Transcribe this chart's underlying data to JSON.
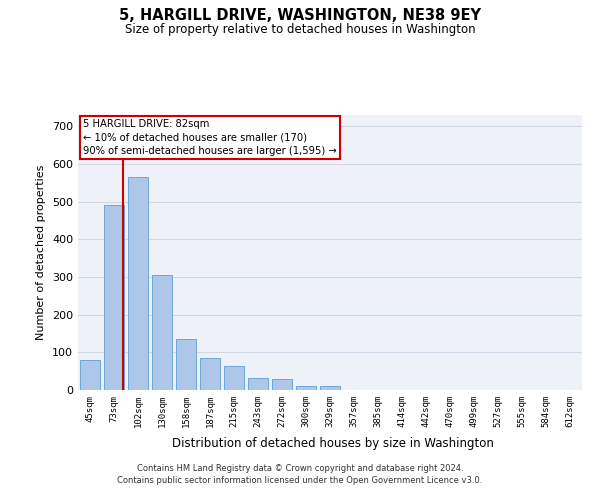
{
  "title": "5, HARGILL DRIVE, WASHINGTON, NE38 9EY",
  "subtitle": "Size of property relative to detached houses in Washington",
  "xlabel": "Distribution of detached houses by size in Washington",
  "ylabel": "Number of detached properties",
  "bar_values": [
    80,
    490,
    565,
    305,
    135,
    85,
    65,
    32,
    28,
    10,
    10,
    0,
    0,
    0,
    0,
    0,
    0,
    0,
    0,
    0,
    0
  ],
  "bar_labels": [
    "45sqm",
    "73sqm",
    "102sqm",
    "130sqm",
    "158sqm",
    "187sqm",
    "215sqm",
    "243sqm",
    "272sqm",
    "300sqm",
    "329sqm",
    "357sqm",
    "385sqm",
    "414sqm",
    "442sqm",
    "470sqm",
    "499sqm",
    "527sqm",
    "555sqm",
    "584sqm",
    "612sqm"
  ],
  "bar_color": "#aec6e8",
  "bar_edgecolor": "#5a9fd4",
  "vline_x": 1.37,
  "vline_color": "#cc0000",
  "ylim": [
    0,
    730
  ],
  "yticks": [
    0,
    100,
    200,
    300,
    400,
    500,
    600,
    700
  ],
  "annotation_text": "5 HARGILL DRIVE: 82sqm\n← 10% of detached houses are smaller (170)\n90% of semi-detached houses are larger (1,595) →",
  "annotation_box_color": "#cc0000",
  "annotation_text_color": "#000000",
  "grid_color": "#d0d8e8",
  "bg_color": "#eef2f8",
  "footer_line1": "Contains HM Land Registry data © Crown copyright and database right 2024.",
  "footer_line2": "Contains public sector information licensed under the Open Government Licence v3.0."
}
